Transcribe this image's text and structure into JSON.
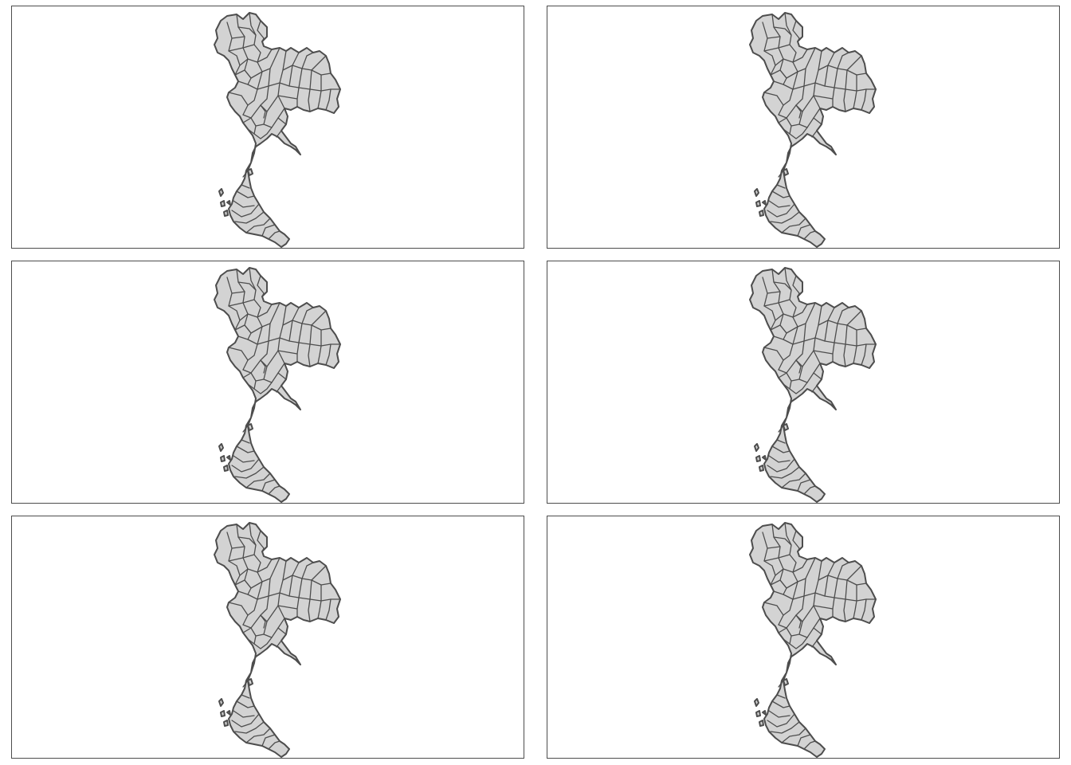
{
  "map": {
    "country": "Thailand",
    "layout": {
      "rows": 3,
      "cols": 2
    },
    "fill_color": "#d3d3d3",
    "border_color": "#4d4d4d",
    "frame_color": "#4d4d4d",
    "background_color": "#ffffff"
  },
  "panels": [
    {
      "id": "panel-1"
    },
    {
      "id": "panel-2"
    },
    {
      "id": "panel-3"
    },
    {
      "id": "panel-4"
    },
    {
      "id": "panel-5"
    },
    {
      "id": "panel-6"
    }
  ]
}
